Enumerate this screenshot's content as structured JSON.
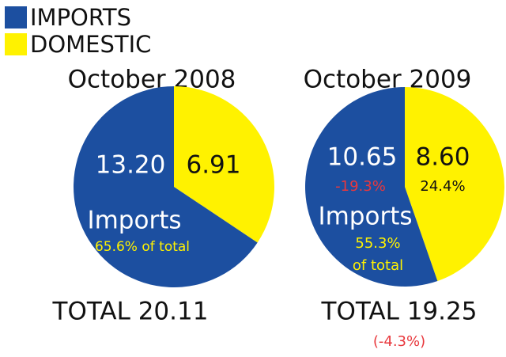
{
  "legend": [
    {
      "name": "IMPORTS",
      "color": "#1c4fa0"
    },
    {
      "name": "DOMESTIC",
      "color": "#fff200"
    }
  ],
  "chart_data": [
    {
      "type": "pie",
      "title": "October 2008",
      "values": [
        13.2,
        6.91
      ],
      "value_labels": [
        "13.20",
        "6.91"
      ],
      "colors": [
        "#1c4fa0",
        "#fff200"
      ],
      "annotations": [
        "Imports",
        "65.6% of total",
        "TOTAL 20.11"
      ]
    },
    {
      "type": "pie",
      "title": "October 2009",
      "values": [
        10.65,
        8.6
      ],
      "value_labels": [
        "10.65",
        "8.60"
      ],
      "colors": [
        "#1c4fa0",
        "#fff200"
      ],
      "annotations": [
        "-19.3%",
        "24.4%",
        "Imports",
        "55.3%",
        "of total",
        "TOTAL 19.25",
        "(-4.3%)"
      ]
    }
  ]
}
